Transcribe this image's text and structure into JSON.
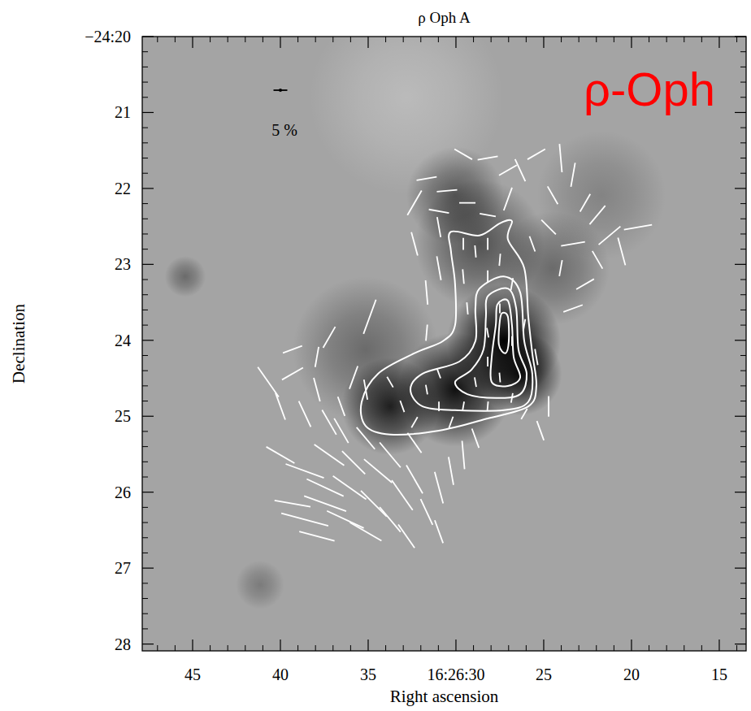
{
  "chart_data": {
    "type": "vector",
    "title": "ρ Oph A",
    "x_label": "Right ascension",
    "y_label": "Declination",
    "annotations": [
      {
        "text": "ρ-Oph",
        "color": "#ff0000"
      }
    ],
    "xlim": [
      47.87,
      13.47
    ],
    "xticks": [
      45,
      40,
      35,
      {
        "value": 30,
        "label": "16:26:30"
      },
      25,
      20,
      15
    ],
    "ylim": [
      20,
      28.09
    ],
    "yticks": [
      {
        "value": 20,
        "label": "−24:20"
      },
      21,
      22,
      23,
      24,
      25,
      26,
      27,
      28
    ],
    "color": "#ffffff",
    "scale_bar": {
      "value": 5,
      "label": "5 %"
    },
    "vectors": {
      "ra": [
        38.61,
        37.45,
        36.3,
        35.14,
        37.45,
        36.06,
        34.68,
        33.75,
        33.06,
        32.36,
        31.67,
        30.97,
        30.28,
        34.44,
        35.83,
        37.22,
        38.61,
        39.31,
        37.92,
        40.0,
        33.75,
        32.36,
        35.14,
        36.53,
        29.58,
        28.89,
        30.97,
        32.82,
        40.69,
        40.0,
        39.31,
        38.61,
        37.92,
        37.22,
        36.53,
        35.83,
        35.14,
        37.92,
        34.91,
        37.22,
        39.31,
        33.75,
        33.06,
        32.36,
        31.67,
        30.97,
        30.28,
        29.58,
        28.89,
        28.19,
        27.5,
        26.81,
        26.11,
        28.19,
        30.97,
        24.72,
        25.19,
        29.58,
        28.89,
        28.19,
        27.5,
        29.58,
        28.19,
        26.81,
        27.5,
        28.19,
        26.81,
        29.35,
        26.11,
        25.42,
        30.97,
        31.67,
        32.36,
        30.97,
        31.67,
        32.36,
        31.67,
        30.51,
        29.35,
        28.19,
        27.04,
        26.34,
        25.42,
        24.03,
        23.33,
        22.64,
        21.94,
        21.25,
        20.56,
        21.94,
        23.33,
        24.72,
        24.03,
        22.64,
        23.33,
        25.65,
        29.58,
        28.19,
        30.97,
        19.63,
        27.04,
        24.49
      ],
      "dec": [
        26.36,
        26.15,
        26.36,
        26.52,
        25.94,
        25.94,
        26.15,
        26.36,
        26.04,
        25.83,
        26.26,
        25.94,
        25.72,
        25.72,
        25.61,
        25.51,
        25.72,
        26.15,
        26.58,
        25.51,
        25.51,
        25.35,
        25.29,
        25.19,
        25.51,
        25.29,
        26.52,
        26.58,
        24.55,
        24.87,
        24.44,
        24.97,
        24.65,
        25.08,
        24.87,
        24.49,
        24.65,
        24.22,
        23.69,
        23.96,
        24.12,
        24.55,
        24.87,
        25.08,
        24.65,
        24.87,
        25.08,
        24.87,
        24.55,
        24.28,
        24.49,
        24.76,
        24.97,
        24.87,
        24.44,
        24.87,
        25.19,
        22.73,
        22.83,
        22.73,
        22.94,
        23.16,
        23.16,
        23.26,
        23.58,
        23.9,
        24.01,
        23.58,
        23.8,
        24.22,
        23.05,
        23.37,
        22.73,
        22.51,
        23.9,
        22.19,
        21.87,
        22.03,
        22.19,
        22.35,
        22.14,
        21.76,
        21.55,
        21.6,
        21.82,
        22.19,
        22.35,
        22.62,
        22.83,
        22.94,
        22.73,
        22.51,
        23.05,
        23.26,
        23.58,
        22.73,
        21.55,
        21.6,
        22.3,
        22.51,
        21.76,
        22.09
      ],
      "p": [
        17.6,
        16.2,
        14.7,
        13.2,
        14.7,
        14.7,
        13.2,
        11.8,
        13.2,
        11.8,
        10.3,
        11.8,
        10.3,
        13.2,
        11.8,
        13.2,
        14.7,
        13.2,
        13.2,
        11.8,
        11.8,
        8.8,
        10.3,
        10.3,
        10.3,
        7.4,
        8.8,
        10.3,
        13.2,
        10.3,
        8.8,
        10.3,
        8.8,
        10.3,
        7.4,
        8.8,
        7.4,
        7.4,
        13.2,
        8.8,
        7.4,
        4.4,
        4.4,
        4.4,
        3.5,
        3.5,
        4.4,
        3.5,
        3.5,
        3.5,
        3.5,
        3.5,
        4.4,
        3.5,
        3.5,
        7.4,
        7.4,
        4.4,
        4.4,
        4.4,
        4.4,
        5.3,
        4.4,
        4.4,
        3.5,
        3.5,
        3.5,
        4.4,
        4.4,
        5.9,
        8.8,
        8.8,
        8.8,
        7.4,
        5.9,
        10.3,
        7.4,
        7.4,
        5.9,
        5.9,
        8.8,
        8.8,
        7.4,
        10.3,
        8.8,
        7.4,
        8.8,
        10.3,
        10.3,
        7.4,
        8.8,
        7.4,
        5.9,
        7.4,
        7.4,
        5.9,
        7.4,
        7.4,
        7.4,
        10.3,
        7.4,
        7.4
      ],
      "angle": [
        75,
        70,
        65,
        60,
        65,
        55,
        45,
        40,
        35,
        30,
        25,
        15,
        10,
        50,
        45,
        55,
        70,
        80,
        75,
        60,
        40,
        35,
        40,
        30,
        5,
        20,
        20,
        35,
        35,
        20,
        120,
        25,
        15,
        30,
        20,
        160,
        10,
        170,
        160,
        150,
        110,
        30,
        20,
        150,
        10,
        0,
        160,
        170,
        10,
        0,
        5,
        170,
        150,
        175,
        20,
        0,
        20,
        0,
        5,
        0,
        175,
        5,
        0,
        170,
        0,
        10,
        0,
        5,
        170,
        10,
        10,
        5,
        15,
        10,
        175,
        150,
        100,
        95,
        90,
        80,
        160,
        25,
        120,
        5,
        170,
        150,
        140,
        130,
        15,
        30,
        100,
        45,
        170,
        120,
        110,
        20,
        60,
        100,
        80,
        100,
        120,
        30
      ]
    },
    "contours": [
      {
        "ra": [
          30.28,
          28.66,
          27.5,
          26.81,
          27.04,
          26.11,
          25.88,
          25.65,
          25.42,
          25.88,
          28.19,
          30.97,
          33.75,
          35.14,
          35.37,
          34.44,
          32.36,
          30.74,
          30.05,
          30.05,
          30.28
        ],
        "dec": [
          22.57,
          22.62,
          22.46,
          22.43,
          22.67,
          23.05,
          23.69,
          24.17,
          24.6,
          24.87,
          25.03,
          25.19,
          25.24,
          25.13,
          24.81,
          24.44,
          24.17,
          24.01,
          23.8,
          23.26,
          22.83
        ]
      },
      {
        "ra": [
          28.66,
          27.27,
          26.34,
          26.11,
          25.65,
          25.88,
          27.27,
          30.05,
          31.9,
          32.59,
          31.9,
          29.81,
          28.89,
          28.89
        ],
        "dec": [
          23.32,
          23.16,
          23.37,
          24.01,
          24.44,
          24.81,
          24.92,
          24.92,
          24.87,
          24.65,
          24.44,
          24.28,
          24.01,
          23.58
        ]
      },
      {
        "ra": [
          28.19,
          27.04,
          26.57,
          26.44,
          25.97,
          26.34,
          27.73,
          29.35,
          30.05,
          29.12,
          28.43,
          28.29
        ],
        "dec": [
          23.42,
          23.32,
          23.58,
          24.12,
          24.44,
          24.71,
          24.76,
          24.71,
          24.55,
          24.39,
          24.12,
          23.69
        ]
      },
      {
        "ra": [
          27.64,
          27.04,
          26.81,
          26.71,
          26.34,
          27.04,
          27.96,
          27.96,
          27.73
        ],
        "dec": [
          23.53,
          23.48,
          23.8,
          24.22,
          24.49,
          24.6,
          24.55,
          24.22,
          23.8
        ]
      },
      {
        "ra": [
          27.36,
          27.04,
          26.99,
          27.18,
          27.55,
          27.5
        ],
        "dec": [
          23.64,
          23.69,
          24.01,
          24.17,
          24.06,
          23.74
        ]
      }
    ],
    "emission": {
      "ra": [
        27.27,
        30.05,
        33.75,
        28.66,
        30.05,
        24.49,
        26.34,
        45.42,
        41.16,
        35.14,
        21.71,
        32.82
      ],
      "dec": [
        24.01,
        24.65,
        24.87,
        22.73,
        22.09,
        23.05,
        24.44,
        23.16,
        27.22,
        24.12,
        22.09,
        20.8
      ],
      "radius": [
        0.75,
        0.75,
        0.64,
        0.85,
        0.64,
        0.75,
        0.55,
        0.27,
        0.32,
        0.96,
        0.85,
        1.28
      ],
      "intensity": [
        1.0,
        0.9,
        0.8,
        0.5,
        0.45,
        0.35,
        0.9,
        0.35,
        0.25,
        0.35,
        0.2,
        -0.25
      ]
    }
  }
}
